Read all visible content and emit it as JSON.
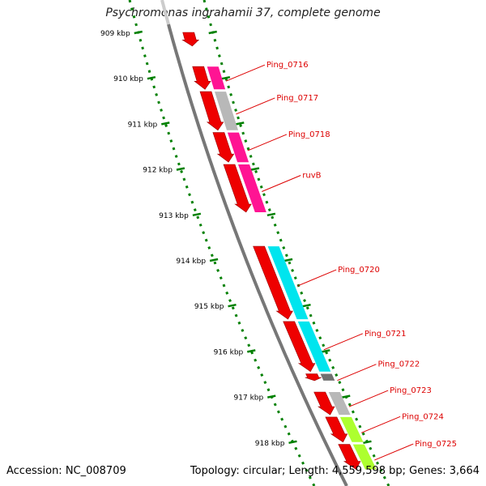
{
  "title": "Psychromonas ingrahamii 37, complete genome",
  "footer": {
    "accession": "Accession: NC_008709",
    "topology": "Topology: circular; Length: 4,559,598 bp; Genes: 3,664"
  },
  "ruler": {
    "ticks": [
      {
        "kbp": 909,
        "label": "909 kbp"
      },
      {
        "kbp": 910,
        "label": "910 kbp"
      },
      {
        "kbp": 911,
        "label": "911 kbp"
      },
      {
        "kbp": 912,
        "label": "912 kbp"
      },
      {
        "kbp": 913,
        "label": "913 kbp"
      },
      {
        "kbp": 914,
        "label": "914 kbp"
      },
      {
        "kbp": 915,
        "label": "915 kbp"
      },
      {
        "kbp": 916,
        "label": "916 kbp"
      },
      {
        "kbp": 917,
        "label": "917 kbp"
      },
      {
        "kbp": 918,
        "label": "918 kbp"
      }
    ]
  },
  "genes": [
    {
      "name": "",
      "start": 909.0,
      "end": 909.3,
      "color": "#ee0000"
    },
    {
      "name": "Ping_0716",
      "start": 909.75,
      "end": 910.25,
      "color": "#ee0000",
      "band": "#ff1493"
    },
    {
      "name": "Ping_0717",
      "start": 910.3,
      "end": 911.15,
      "color": "#ee0000",
      "band": "#b8b8b8"
    },
    {
      "name": "Ping_0718",
      "start": 911.2,
      "end": 911.85,
      "color": "#ee0000",
      "band": "#ff1493"
    },
    {
      "name": "ruvB",
      "start": 911.9,
      "end": 912.95,
      "color": "#ee0000",
      "band": "#ff1493"
    },
    {
      "name": "Ping_0720",
      "start": 913.7,
      "end": 915.3,
      "color": "#ee0000",
      "band": "#00e5ee"
    },
    {
      "name": "Ping_0721",
      "start": 915.35,
      "end": 916.45,
      "color": "#ee0000",
      "band": "#00e5ee"
    },
    {
      "name": "Ping_0722",
      "start": 916.5,
      "end": 916.65,
      "color": "#ee0000",
      "band": "#707070"
    },
    {
      "name": "Ping_0723",
      "start": 916.9,
      "end": 917.4,
      "color": "#ee0000",
      "band": "#b8b8b8"
    },
    {
      "name": "Ping_0724",
      "start": 917.45,
      "end": 918.0,
      "color": "#ee0000",
      "band": "#adff2f"
    },
    {
      "name": "Ping_0725",
      "start": 918.05,
      "end": 918.6,
      "color": "#ee0000",
      "band": "#adff2f"
    }
  ],
  "colors": {
    "ruler_green": "#008000",
    "backbone": "#777777",
    "label_red": "#dd0000"
  }
}
